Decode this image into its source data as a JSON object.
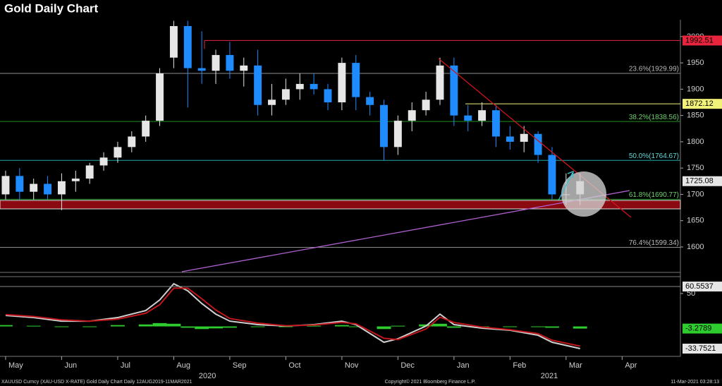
{
  "title": "Gold Daily Chart",
  "footer": {
    "left": "XAUUSD Curncy (XAU-USD X-RATE) Gold Daily Chart  Daily 12AUG2019-11MAR2021",
    "center": "Copyright© 2021 Bloomberg Finance L.P.",
    "right": "11-Mar-2021 03:28:13"
  },
  "chart_data": [
    {
      "type": "candlestick",
      "xlim": [
        -0.1,
        12.04
      ],
      "xticks": [
        {
          "value": 0,
          "label": "May"
        },
        {
          "value": 1,
          "label": "Jun"
        },
        {
          "value": 2,
          "label": "Jul"
        },
        {
          "value": 3,
          "label": "Aug"
        },
        {
          "value": 4,
          "label": "Sep"
        },
        {
          "value": 5,
          "label": "Oct"
        },
        {
          "value": 6,
          "label": "Nov"
        },
        {
          "value": 7,
          "label": "Dec"
        },
        {
          "value": 8,
          "label": "Jan"
        },
        {
          "value": 9,
          "label": "Feb"
        },
        {
          "value": 10,
          "label": "Mar"
        },
        {
          "value": 11,
          "label": "Apr"
        }
      ],
      "years": [
        {
          "value": 3.6,
          "label": "2020"
        },
        {
          "value": 9.7,
          "label": "2021"
        }
      ],
      "ylim": [
        1553,
        2032
      ],
      "yticks": [
        1600,
        1650,
        1700,
        1750,
        1800,
        1850,
        1900,
        1950,
        2000
      ],
      "up_color": "#e6e6e6",
      "down_color": "#1e8cff",
      "x": [
        0,
        0.25,
        0.5,
        0.75,
        1,
        1.25,
        1.5,
        1.75,
        2,
        2.25,
        2.5,
        2.75,
        3,
        3.25,
        3.5,
        3.75,
        4,
        4.25,
        4.5,
        4.75,
        5,
        5.25,
        5.5,
        5.75,
        6,
        6.25,
        6.5,
        6.75,
        7,
        7.25,
        7.5,
        7.75,
        8,
        8.25,
        8.5,
        8.75,
        9,
        9.25,
        9.5,
        9.75,
        10,
        10.25
      ],
      "open": [
        1700,
        1735,
        1705,
        1720,
        1700,
        1725,
        1730,
        1755,
        1770,
        1790,
        1810,
        1840,
        1960,
        2020,
        1940,
        1935,
        1965,
        1935,
        1945,
        1870,
        1880,
        1900,
        1910,
        1900,
        1875,
        1950,
        1885,
        1870,
        1790,
        1840,
        1860,
        1880,
        1945,
        1850,
        1840,
        1860,
        1810,
        1800,
        1815,
        1775,
        1700,
        1700
      ],
      "high": [
        1745,
        1750,
        1730,
        1735,
        1740,
        1745,
        1760,
        1780,
        1800,
        1820,
        1850,
        1940,
        2030,
        2030,
        2010,
        1975,
        1990,
        1960,
        1975,
        1910,
        1920,
        1930,
        1930,
        1910,
        1960,
        1965,
        1895,
        1880,
        1850,
        1875,
        1895,
        1960,
        1960,
        1870,
        1875,
        1870,
        1830,
        1830,
        1820,
        1790,
        1740,
        1740
      ],
      "low": [
        1690,
        1690,
        1690,
        1690,
        1670,
        1705,
        1720,
        1745,
        1760,
        1780,
        1800,
        1830,
        1940,
        1865,
        1910,
        1910,
        1920,
        1905,
        1850,
        1850,
        1870,
        1880,
        1890,
        1860,
        1860,
        1860,
        1850,
        1765,
        1775,
        1820,
        1850,
        1870,
        1830,
        1820,
        1830,
        1790,
        1785,
        1780,
        1760,
        1690,
        1680,
        1680
      ],
      "close": [
        1735,
        1705,
        1720,
        1700,
        1725,
        1730,
        1755,
        1770,
        1790,
        1810,
        1840,
        1930,
        2020,
        1940,
        1935,
        1965,
        1935,
        1945,
        1870,
        1880,
        1900,
        1910,
        1900,
        1875,
        1950,
        1885,
        1870,
        1790,
        1840,
        1860,
        1880,
        1945,
        1850,
        1840,
        1860,
        1810,
        1800,
        1815,
        1775,
        1700,
        1700,
        1725.08
      ],
      "fib_levels": [
        {
          "value": 1929.99,
          "label": "23.6%(1929.99)",
          "color": "#8c8c8c"
        },
        {
          "value": 1838.56,
          "label": "38.2%(1838.56)",
          "color": "#1f8f1f"
        },
        {
          "value": 1764.67,
          "label": "50.0%(1764.67)",
          "color": "#1fa8a8"
        },
        {
          "value": 1690.77,
          "label": "61.8%(1690.77)",
          "color": "#1f8f1f"
        },
        {
          "value": 1599.34,
          "label": "76.4%(1599.34)",
          "color": "#8c8c8c"
        }
      ],
      "markers": [
        {
          "value": 1992.51,
          "color": "#e8253d"
        },
        {
          "value": 1872.12,
          "color": "#f2f27a"
        },
        {
          "value": 1725.08,
          "color": "#e6e6e6"
        }
      ]
    },
    {
      "type": "line",
      "ylim": [
        -38,
        72.4
      ],
      "yticks": [
        50
      ],
      "x": [
        0,
        0.5,
        1,
        1.5,
        2,
        2.5,
        2.75,
        3,
        3.25,
        3.5,
        3.75,
        4,
        4.5,
        5,
        5.5,
        6,
        6.25,
        6.75,
        7,
        7.5,
        7.75,
        8,
        8.5,
        9,
        9.5,
        9.75,
        10.25
      ],
      "series": [
        {
          "color": "#d0d0d0",
          "values": [
            16.6,
            13.4,
            8.0,
            8.0,
            13.4,
            24.1,
            40.2,
            64.8,
            54.1,
            34.8,
            18.7,
            8.0,
            2.7,
            0.6,
            2.7,
            8.0,
            2.7,
            -24.1,
            -18.8,
            0.6,
            18.7,
            2.7,
            -2.7,
            -5.9,
            -13.4,
            -24.1,
            -33.7521
          ]
        },
        {
          "color": "#c0161c",
          "values": [
            18,
            15,
            10,
            8,
            11,
            20,
            33,
            58,
            58,
            42,
            25,
            12,
            5,
            1,
            2,
            6,
            4,
            -18,
            -20,
            -4,
            14,
            6,
            -1,
            -5,
            -11,
            -21,
            -30
          ]
        }
      ],
      "histogram": {
        "color": "#2ecc2e",
        "values": [
          2,
          1,
          -1,
          0,
          2,
          3,
          5,
          4,
          -2,
          -4,
          -3,
          -2,
          -1,
          0,
          1,
          2,
          -1,
          -4,
          1,
          3,
          4,
          -2,
          -1,
          0,
          -1,
          -2,
          -3.2789
        ]
      },
      "markers": [
        {
          "value": 60.5537,
          "color": "#e6e6e6"
        },
        {
          "value": -3.2789,
          "color": "#2ecc2e"
        },
        {
          "value": -33.7521,
          "color": "#e6e6e6"
        }
      ]
    }
  ]
}
